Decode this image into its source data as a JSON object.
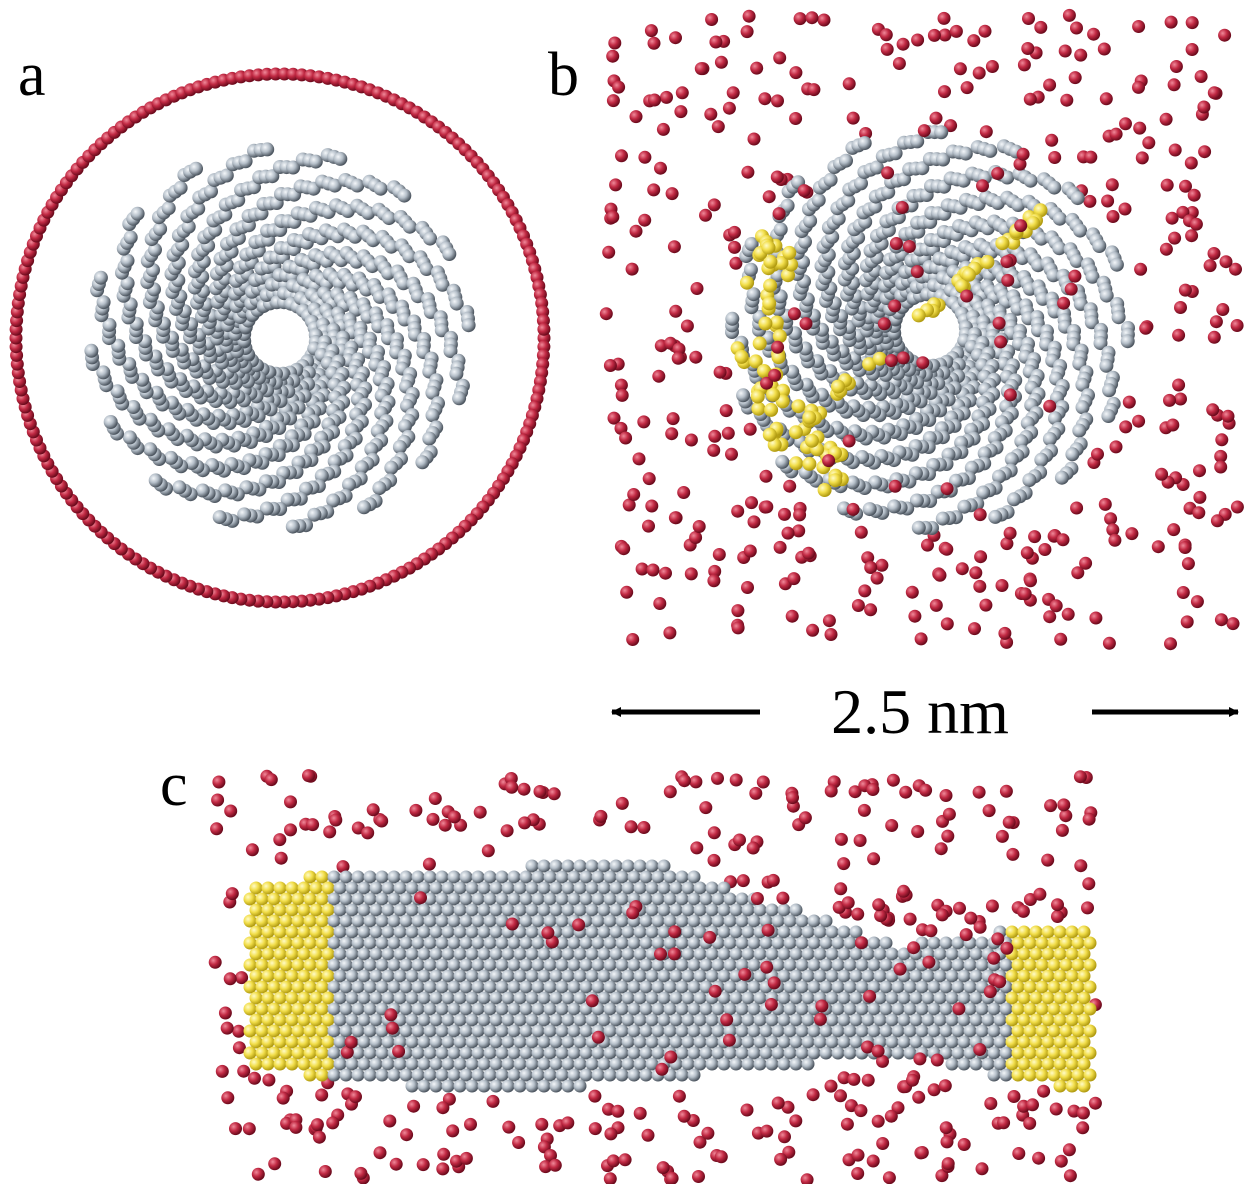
{
  "panels": {
    "a": {
      "label": "a"
    },
    "b": {
      "label": "b",
      "scale_label": "2.5 nm"
    },
    "c": {
      "label": "c"
    }
  }
}
